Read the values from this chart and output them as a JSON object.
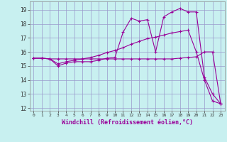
{
  "xlabel": "Windchill (Refroidissement éolien,°C)",
  "background_color": "#c8f0f0",
  "line_color": "#990099",
  "grid_color": "#9999cc",
  "xlim": [
    -0.5,
    23.5
  ],
  "ylim": [
    11.8,
    19.6
  ],
  "xticks": [
    0,
    1,
    2,
    3,
    4,
    5,
    6,
    7,
    8,
    9,
    10,
    11,
    12,
    13,
    14,
    15,
    16,
    17,
    18,
    19,
    20,
    21,
    22,
    23
  ],
  "yticks": [
    12,
    13,
    14,
    15,
    16,
    17,
    18,
    19
  ],
  "line1_x": [
    0,
    1,
    2,
    3,
    4,
    5,
    6,
    7,
    8,
    9,
    10,
    11,
    12,
    13,
    14,
    15,
    16,
    17,
    18,
    19,
    20,
    21,
    22,
    23
  ],
  "line1_y": [
    15.55,
    15.55,
    15.5,
    15.0,
    15.2,
    15.3,
    15.3,
    15.3,
    15.4,
    15.55,
    15.6,
    17.4,
    18.4,
    18.2,
    18.3,
    16.0,
    18.5,
    18.85,
    19.1,
    18.85,
    18.85,
    14.2,
    13.0,
    12.3
  ],
  "line2_x": [
    0,
    1,
    2,
    3,
    4,
    5,
    6,
    7,
    8,
    9,
    10,
    11,
    12,
    13,
    14,
    15,
    16,
    17,
    18,
    19,
    20,
    21,
    22,
    23
  ],
  "line2_y": [
    15.55,
    15.55,
    15.5,
    15.15,
    15.3,
    15.4,
    15.5,
    15.6,
    15.75,
    15.95,
    16.1,
    16.3,
    16.55,
    16.75,
    16.95,
    17.05,
    17.2,
    17.35,
    17.45,
    17.55,
    16.0,
    14.0,
    12.5,
    12.3
  ],
  "line3_x": [
    0,
    1,
    2,
    3,
    4,
    5,
    6,
    7,
    8,
    9,
    10,
    11,
    12,
    13,
    14,
    15,
    16,
    17,
    18,
    19,
    20,
    21,
    22,
    23
  ],
  "line3_y": [
    15.55,
    15.55,
    15.5,
    15.5,
    15.5,
    15.5,
    15.5,
    15.5,
    15.5,
    15.5,
    15.5,
    15.5,
    15.5,
    15.5,
    15.5,
    15.5,
    15.5,
    15.5,
    15.55,
    15.6,
    15.65,
    16.0,
    16.0,
    12.3
  ]
}
